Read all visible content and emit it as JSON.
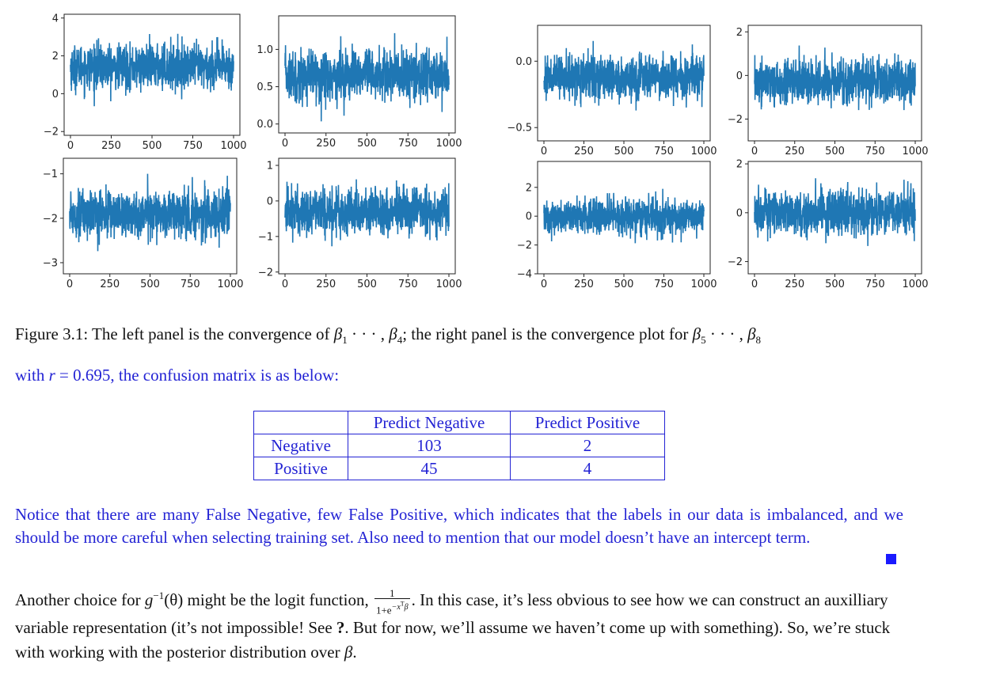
{
  "chart_data": [
    {
      "type": "line",
      "panel": "beta_1",
      "x_range": [
        0,
        1000
      ],
      "ylim": [
        -2.2,
        4.2
      ],
      "y_ticks": [
        "−2",
        "0",
        "2",
        "4"
      ],
      "x_ticks": [
        "0",
        "250",
        "500",
        "750",
        "1000"
      ],
      "center": 1.4,
      "spread": 0.95,
      "color": "#1f77b4"
    },
    {
      "type": "line",
      "panel": "beta_2",
      "x_range": [
        0,
        1000
      ],
      "ylim": [
        -0.12,
        1.45
      ],
      "y_ticks": [
        "0.0",
        "0.5",
        "1.0"
      ],
      "x_ticks": [
        "0",
        "250",
        "500",
        "750",
        "1000"
      ],
      "center": 0.65,
      "spread": 0.28,
      "color": "#1f77b4"
    },
    {
      "type": "line",
      "panel": "beta_3",
      "x_range": [
        0,
        1000
      ],
      "ylim": [
        -3.25,
        -0.65
      ],
      "y_ticks": [
        "−3",
        "−2",
        "−1"
      ],
      "x_ticks": [
        "0",
        "250",
        "500",
        "750",
        "1000"
      ],
      "center": -1.9,
      "spread": 0.42,
      "color": "#1f77b4"
    },
    {
      "type": "line",
      "panel": "beta_4",
      "x_range": [
        0,
        1000
      ],
      "ylim": [
        -2.05,
        1.2
      ],
      "y_ticks": [
        "−2",
        "−1",
        "0",
        "1"
      ],
      "x_ticks": [
        "0",
        "250",
        "500",
        "750",
        "1000"
      ],
      "center": -0.3,
      "spread": 0.55,
      "color": "#1f77b4"
    },
    {
      "type": "line",
      "panel": "beta_5",
      "x_range": [
        0,
        1000
      ],
      "ylim": [
        -0.6,
        0.27
      ],
      "y_ticks": [
        "−0.5",
        "0.0"
      ],
      "x_ticks": [
        "0",
        "250",
        "500",
        "750",
        "1000"
      ],
      "center": -0.12,
      "spread": 0.13,
      "color": "#1f77b4"
    },
    {
      "type": "line",
      "panel": "beta_6",
      "x_range": [
        0,
        1000
      ],
      "ylim": [
        -3.0,
        2.3
      ],
      "y_ticks": [
        "−2",
        "0",
        "2"
      ],
      "x_ticks": [
        "0",
        "250",
        "500",
        "750",
        "1000"
      ],
      "center": -0.3,
      "spread": 0.85,
      "color": "#1f77b4"
    },
    {
      "type": "line",
      "panel": "beta_7",
      "x_range": [
        0,
        1000
      ],
      "ylim": [
        -4.0,
        3.8
      ],
      "y_ticks": [
        "−4",
        "−2",
        "0",
        "2"
      ],
      "x_ticks": [
        "0",
        "250",
        "500",
        "750",
        "1000"
      ],
      "center": 0.0,
      "spread": 1.0,
      "color": "#1f77b4"
    },
    {
      "type": "line",
      "panel": "beta_8",
      "x_range": [
        0,
        1000
      ],
      "ylim": [
        -2.5,
        2.1
      ],
      "y_ticks": [
        "−2",
        "0",
        "2"
      ],
      "x_ticks": [
        "0",
        "250",
        "500",
        "750",
        "1000"
      ],
      "center": 0.0,
      "spread": 0.75,
      "color": "#1f77b4"
    }
  ],
  "caption": {
    "label": "Figure 3.1:",
    "t1": "The left panel is the convergence of",
    "t2": "; the right panel is the convergence plot for",
    "beta_sym": "β",
    "s1": "1",
    "s4": "4",
    "s5": "5",
    "s8": "8",
    "dots": "· · · ,"
  },
  "intro": {
    "t1": "with",
    "var": "r",
    "t2": "= 0.695, the confusion matrix is as below:"
  },
  "confusion_matrix": {
    "col_headers": [
      "",
      "Predict Negative",
      "Predict Positive"
    ],
    "rows": [
      {
        "label": "Negative",
        "values": [
          "103",
          "2"
        ]
      },
      {
        "label": "Positive",
        "values": [
          "45",
          "4"
        ]
      }
    ]
  },
  "notice": "Notice that there are many False Negative, few False Positive, which indicates that the labels in our data is imbalanced, and we should be more careful when selecting training set. Also need to mention that our model doesn’t have an intercept term.",
  "another": {
    "t1": "Another choice for",
    "g": "g",
    "inv": "−1",
    "theta": "(θ)",
    "t2": "might be the logit function,",
    "frac_num": "1",
    "frac_den": "1+e",
    "frac_exp": "−x",
    "frac_T": "T",
    "frac_beta": "β",
    "t3": ". In this case, it’s less obvious to see how we can construct an auxilliary variable representation (it’s not impossible! See",
    "ref": "?",
    "t4": ". But for now, we’ll assume we haven’t come up with something). So, we’re stuck with working with the posterior distribution over",
    "beta": "β",
    "t5": "."
  }
}
